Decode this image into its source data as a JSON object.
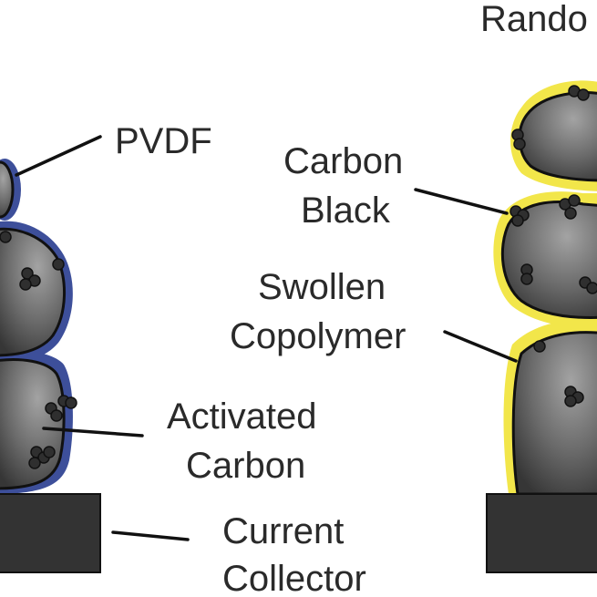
{
  "labels": {
    "top_right": "Rando",
    "pvdf": "PVDF",
    "carbon_black_line1": "Carbon",
    "carbon_black_line2": "Black",
    "swollen_line1": "Swollen",
    "swollen_line2": "Copolymer",
    "activated_line1": "Activated",
    "activated_line2": "Carbon",
    "collector_line1": "Current",
    "collector_line2": "Collector"
  },
  "colors": {
    "pvdf_coating": "#3d4f9a",
    "copolymer_coating": "#f2e64a",
    "particle_light": "#9a9a9a",
    "particle_dark": "#3a3a3a",
    "collector": "#333333",
    "carbon_black": "#2f2f2f"
  }
}
